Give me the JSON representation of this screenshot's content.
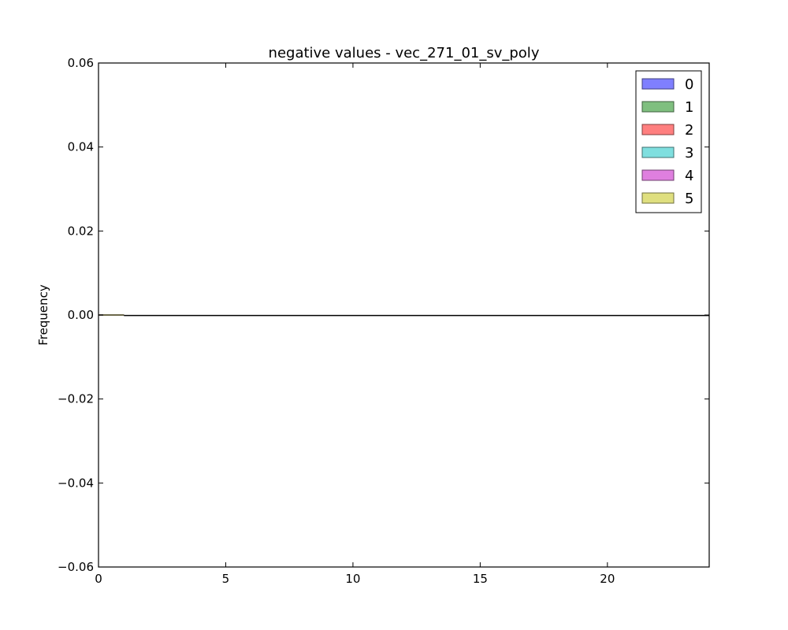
{
  "chart_data": {
    "type": "bar",
    "title": "negative values - vec_271_01_sv_poly",
    "xlabel": "",
    "ylabel": "Frequency",
    "xlim": [
      0,
      24
    ],
    "ylim": [
      -0.06,
      0.06
    ],
    "x_ticks": [
      0,
      5,
      10,
      15,
      20
    ],
    "x_tick_labels": [
      "0",
      "5",
      "10",
      "15",
      "20"
    ],
    "y_ticks": [
      0.06,
      0.04,
      0.02,
      0.0,
      -0.02,
      -0.04,
      -0.06
    ],
    "y_tick_labels": [
      "0.06",
      "0.04",
      "0.02",
      "0.00",
      "−0.02",
      "−0.04",
      "−0.06"
    ],
    "grid": false,
    "legend_position": "top-right",
    "series": [
      {
        "name": "0",
        "color": "#7f7fff",
        "x": [
          0,
          1
        ],
        "values": [
          0,
          0
        ]
      },
      {
        "name": "1",
        "color": "#7fbf7f",
        "x": [
          0,
          1
        ],
        "values": [
          0,
          0
        ]
      },
      {
        "name": "2",
        "color": "#ff7f7f",
        "x": [
          0,
          1
        ],
        "values": [
          0,
          0
        ]
      },
      {
        "name": "3",
        "color": "#7fdfdf",
        "x": [
          0,
          1
        ],
        "values": [
          0,
          0
        ]
      },
      {
        "name": "4",
        "color": "#df7fdf",
        "x": [
          0,
          1
        ],
        "values": [
          0,
          0
        ]
      },
      {
        "name": "5",
        "color": "#dfdf7f",
        "x": [
          0,
          1
        ],
        "values": [
          0,
          0
        ]
      }
    ],
    "series_edge_colors": [
      "#3f3f7f",
      "#3f5f3f",
      "#7f3f3f",
      "#3f6f6f",
      "#6f3f6f",
      "#6f6f3f"
    ]
  }
}
